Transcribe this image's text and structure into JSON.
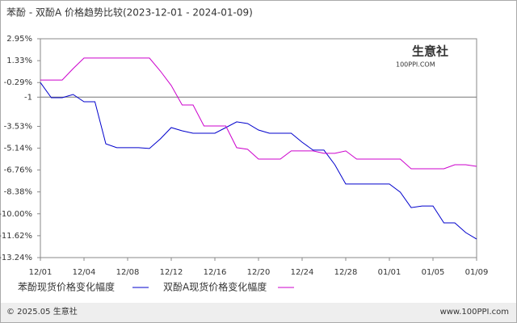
{
  "chart_data": {
    "type": "line",
    "title": "苯酚 - 双酚A 价格趋势比较(2023-12-01 - 2024-01-09)",
    "categories": [
      "12/01",
      null,
      null,
      null,
      "12/04",
      null,
      null,
      null,
      "12/08",
      null,
      null,
      null,
      "12/12",
      null,
      null,
      null,
      "12/16",
      null,
      null,
      null,
      "12/20",
      null,
      null,
      null,
      "12/24",
      null,
      null,
      null,
      "12/28",
      null,
      null,
      null,
      "01/01",
      null,
      null,
      null,
      "01/05",
      null,
      null,
      null,
      "01/09"
    ],
    "series": [
      {
        "name": "苯酚现货价格变化幅度",
        "color": "#0000cc",
        "values": [
          -0.29,
          -1.41,
          -1.41,
          -1.17,
          -1.71,
          -1.71,
          -4.82,
          -5.11,
          -5.11,
          -5.11,
          -5.17,
          -4.46,
          -3.62,
          -3.86,
          -4.04,
          -4.04,
          -4.04,
          -3.62,
          -3.2,
          -3.32,
          -3.8,
          -4.04,
          -4.04,
          -4.04,
          -4.7,
          -5.29,
          -5.29,
          -6.37,
          -7.8,
          -7.8,
          -7.8,
          -7.8,
          -7.8,
          -8.4,
          -9.54,
          -9.42,
          -9.42,
          -10.67,
          -10.67,
          -11.39,
          -11.87
        ]
      },
      {
        "name": "双酚A现货价格变化幅度",
        "color": "#cc00cc",
        "values": [
          -0.1,
          -0.1,
          -0.1,
          0.74,
          1.52,
          1.52,
          1.52,
          1.52,
          1.52,
          1.52,
          1.52,
          0.56,
          -0.51,
          -1.95,
          -1.95,
          -3.5,
          -3.5,
          -3.5,
          -5.11,
          -5.23,
          -5.95,
          -5.95,
          -5.95,
          -5.35,
          -5.35,
          -5.35,
          -5.53,
          -5.53,
          -5.35,
          -5.95,
          -5.95,
          -5.95,
          -5.95,
          -5.95,
          -6.67,
          -6.67,
          -6.67,
          -6.67,
          -6.37,
          -6.37,
          -6.49
        ]
      }
    ],
    "ylim": [
      -13.24,
      2.95
    ],
    "yticks": [
      {
        "value": 2.95,
        "label": "2.95%"
      },
      {
        "value": 1.33,
        "label": "1.33%"
      },
      {
        "value": -0.29,
        "label": "-0.29%"
      },
      {
        "value": -1.37,
        "label": "-1"
      },
      {
        "value": -3.53,
        "label": "-3.53%"
      },
      {
        "value": -5.14,
        "label": "-5.14%"
      },
      {
        "value": -6.76,
        "label": "-6.76%"
      },
      {
        "value": -8.38,
        "label": "-8.38%"
      },
      {
        "value": -10.0,
        "label": "-10.00%"
      },
      {
        "value": -11.62,
        "label": "-11.62%"
      },
      {
        "value": -13.24,
        "label": "-13.24%"
      }
    ],
    "watermark": "生意社",
    "watermark_sub": "100PPI.COM",
    "footer_left": "© 2025.05 生意社",
    "footer_right": "www.100PPI.com"
  }
}
